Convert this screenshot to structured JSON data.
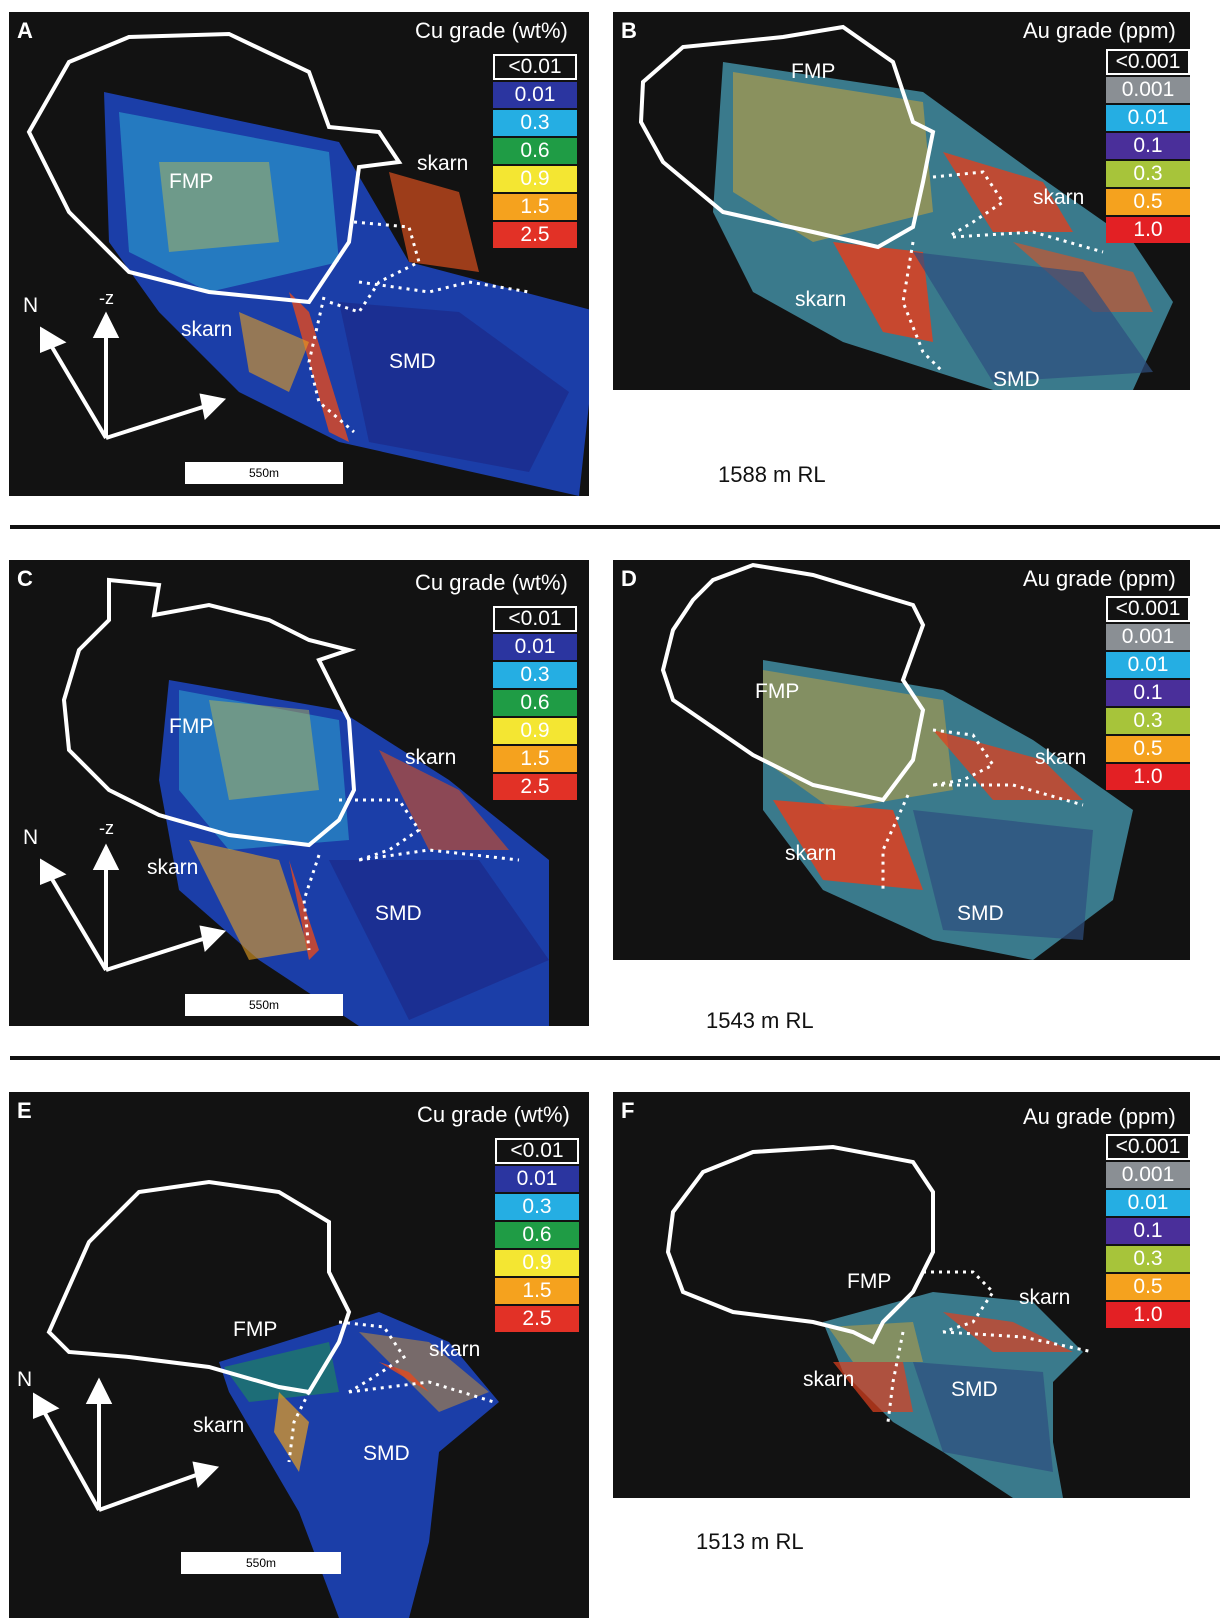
{
  "cu_legend": {
    "title": "Cu grade (wt%)",
    "classes": [
      {
        "label": "<0.01",
        "color": "#121212"
      },
      {
        "label": "0.01",
        "color": "#2b35a0"
      },
      {
        "label": "0.3",
        "color": "#25aee3"
      },
      {
        "label": "0.6",
        "color": "#1f9c45"
      },
      {
        "label": "0.9",
        "color": "#f4e632"
      },
      {
        "label": "1.5",
        "color": "#f5a21e"
      },
      {
        "label": "2.5",
        "color": "#e23126"
      }
    ]
  },
  "au_legend": {
    "title": "Au grade (ppm)",
    "classes": [
      {
        "label": "<0.001",
        "color": "#121212"
      },
      {
        "label": "0.001",
        "color": "#8a8f94"
      },
      {
        "label": "0.01",
        "color": "#25aee3"
      },
      {
        "label": "0.1",
        "color": "#4a2f9a"
      },
      {
        "label": "0.3",
        "color": "#a7c43a"
      },
      {
        "label": "0.5",
        "color": "#f5a21e"
      },
      {
        "label": "1.0",
        "color": "#e32024"
      }
    ]
  },
  "panels": [
    {
      "label": "A",
      "fmp": "FMP",
      "skarn_1": "skarn",
      "skarn_2": "skarn",
      "smd": "SMD",
      "scale": "550m",
      "north": "N",
      "up": "-z"
    },
    {
      "label": "B",
      "fmp": "FMP",
      "skarn_1": "skarn",
      "skarn_2": "skarn",
      "smd": "SMD"
    },
    {
      "label": "C",
      "fmp": "FMP",
      "skarn_1": "skarn",
      "skarn_2": "skarn",
      "smd": "SMD",
      "scale": "550m",
      "north": "N",
      "up": "-z"
    },
    {
      "label": "D",
      "fmp": "FMP",
      "skarn_1": "skarn",
      "skarn_2": "skarn",
      "smd": "SMD"
    },
    {
      "label": "E",
      "fmp": "FMP",
      "skarn_1": "skarn",
      "skarn_2": "skarn",
      "smd": "SMD",
      "scale": "550m",
      "north": "N"
    },
    {
      "label": "F",
      "fmp": "FMP",
      "skarn_1": "skarn",
      "skarn_2": "skarn",
      "smd": "SMD"
    }
  ],
  "levels": [
    "1588 m RL",
    "1543 m RL",
    "1513 m RL"
  ]
}
